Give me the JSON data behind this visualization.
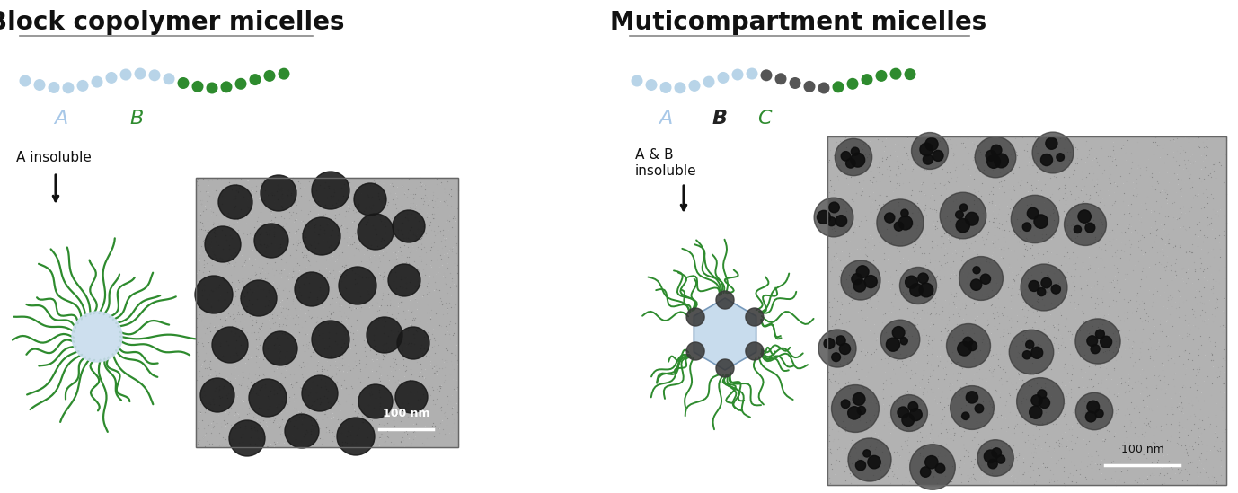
{
  "title_left": "Block copolymer micelles",
  "title_right": "Muticompartment micelles",
  "title_fontsize": 20,
  "title_fontweight": "bold",
  "bg_color": "#ffffff",
  "label_A_color": "#a8c8e8",
  "label_B_color": "#2e8b2e",
  "label_C_color": "#2e8b2e",
  "label_B_dark_color": "#333333",
  "bead_light_blue": "#b8d4e8",
  "bead_green": "#2e8b2e",
  "bead_dark_gray": "#555555",
  "bead_r": 6.5,
  "arrow_color": "#111111",
  "text_color": "#111111",
  "line_color": "#888888",
  "micelle_green": "#2e8b2e",
  "micelle_core_blue": "#c8dced",
  "micelle_core_dark": "#555555",
  "tem_bg": "#b0b0b0",
  "tem_dot_color": "#181818",
  "scale_bar_text": "100 nm"
}
